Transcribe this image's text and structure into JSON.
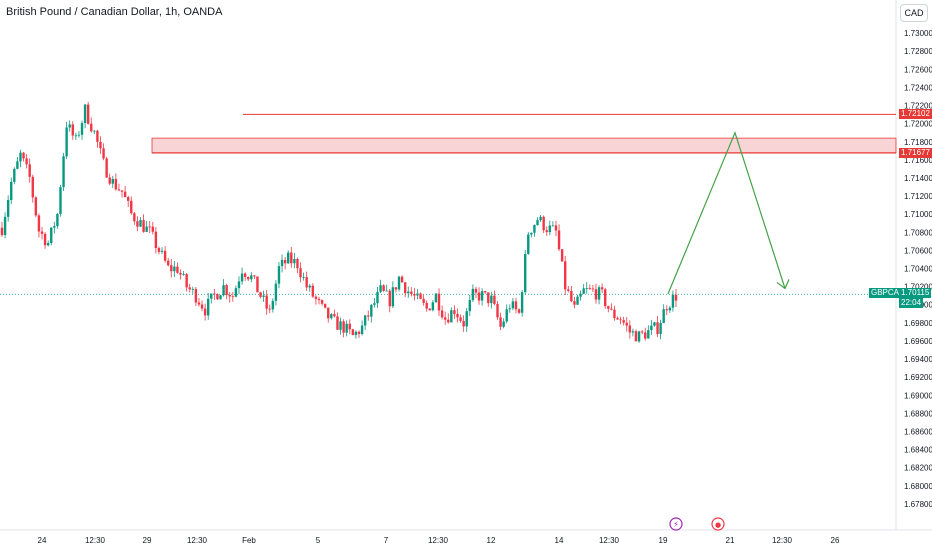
{
  "header": {
    "title": "British Pound / Canadian Dollar, 1h, OANDA",
    "currency_button": "CAD"
  },
  "colors": {
    "up": "#089981",
    "down": "#f23645",
    "zone_fill": "#f7c5c9",
    "zone_line": "#e53935",
    "projection": "#43a047",
    "price_line": "#26a69a"
  },
  "icons": [
    "lightning-event-icon",
    "economic-event-icon"
  ],
  "chart_data": {
    "type": "candlestick",
    "symbol": "GBPCAD",
    "ylim": [
      1.676,
      1.732
    ],
    "y_ticks": [
      "1.73000",
      "1.72800",
      "1.72600",
      "1.72400",
      "1.72200",
      "1.72000",
      "1.71800",
      "1.71600",
      "1.71400",
      "1.71200",
      "1.71000",
      "1.70800",
      "1.70600",
      "1.70400",
      "1.70200",
      "1.70000",
      "1.69800",
      "1.69600",
      "1.69400",
      "1.69200",
      "1.69000",
      "1.68800",
      "1.68600",
      "1.68400",
      "1.68200",
      "1.68000",
      "1.67800"
    ],
    "x_ticks": [
      "24",
      "12:30",
      "29",
      "12:30",
      "Feb",
      "5",
      "7",
      "12:30",
      "12",
      "14",
      "12:30",
      "19",
      "21",
      "12:30",
      "26"
    ],
    "close_path": [
      1.7085,
      1.7135,
      1.7165,
      1.714,
      1.7082,
      1.7068,
      1.71,
      1.72,
      1.718,
      1.7215,
      1.719,
      1.7155,
      1.7135,
      1.7125,
      1.71,
      1.709,
      1.708,
      1.706,
      1.704,
      1.704,
      1.702,
      1.701,
      1.6995,
      1.701,
      1.702,
      1.701,
      1.704,
      1.703,
      1.701,
      1.699,
      1.704,
      1.705,
      1.7045,
      1.702,
      1.7005,
      1.699,
      1.698,
      1.6975,
      1.6965,
      1.6975,
      1.6995,
      1.7015,
      1.7005,
      1.703,
      1.7015,
      1.7005,
      1.6995,
      1.701,
      1.6985,
      1.6995,
      1.698,
      1.701,
      1.701,
      1.7005,
      1.6975,
      1.7,
      1.699,
      1.708,
      1.7095,
      1.7085,
      1.708,
      1.702,
      1.6995,
      1.7015,
      1.7015,
      1.701,
      1.699,
      1.6985,
      1.697,
      1.6965,
      1.697,
      1.6975,
      1.7,
      1.701
    ],
    "price_levels": [
      {
        "label": "1.72102",
        "value": 1.72102
      },
      {
        "label": "1.71677",
        "value": 1.71677
      }
    ],
    "resistance_zone": [
      1.71677,
      1.7184
    ],
    "current_price": {
      "symbol": "GBPCAD",
      "label": "1.70115",
      "value": 1.70115,
      "countdown": "22:04"
    },
    "projection_path": [
      1.7012,
      1.719,
      1.7018
    ]
  }
}
